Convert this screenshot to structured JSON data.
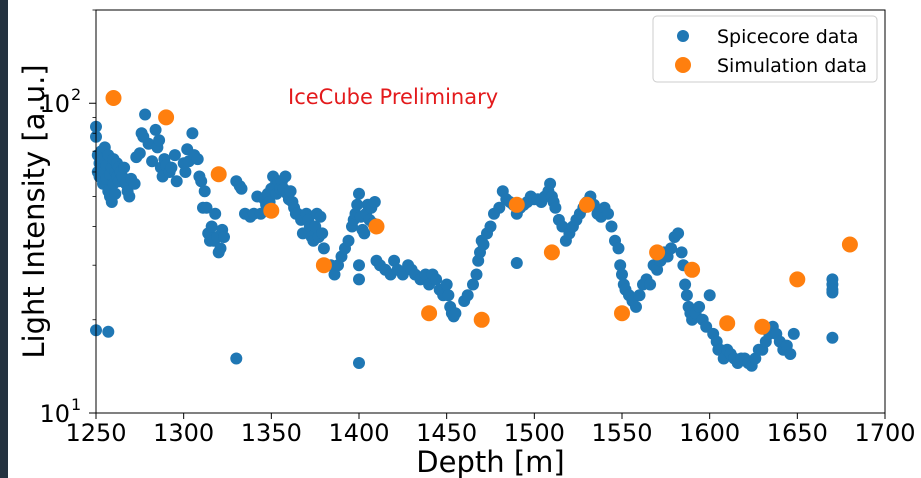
{
  "chart_data": {
    "type": "scatter",
    "title": "",
    "xlabel": "Depth [m]",
    "ylabel": "Light Intensity [a.u.]",
    "xlim": [
      1250,
      1700
    ],
    "ylim": [
      10,
      200
    ],
    "yscale": "log",
    "xticks": [
      "1250",
      "1300",
      "1350",
      "1400",
      "1450",
      "1500",
      "1550",
      "1600",
      "1650",
      "1700"
    ],
    "yticks": [
      {
        "value": 10,
        "base": "10",
        "exp": "1"
      },
      {
        "value": 100,
        "base": "10",
        "exp": "2"
      }
    ],
    "grid": false,
    "legend_position": "top-right",
    "annotation": {
      "text": "IceCube Preliminary",
      "color": "#e31a1c"
    },
    "series": [
      {
        "name": "Spicecore data",
        "color": "#1f77b4",
        "points": [
          [
            1250,
            84
          ],
          [
            1250,
            78
          ],
          [
            1251,
            68
          ],
          [
            1251,
            60
          ],
          [
            1252,
            64
          ],
          [
            1252,
            58
          ],
          [
            1253,
            70
          ],
          [
            1253,
            62
          ],
          [
            1254,
            55
          ],
          [
            1254,
            66
          ],
          [
            1255,
            72
          ],
          [
            1255,
            60
          ],
          [
            1256,
            57
          ],
          [
            1256,
            63
          ],
          [
            1257,
            68
          ],
          [
            1257,
            52
          ],
          [
            1258,
            59
          ],
          [
            1258,
            50
          ],
          [
            1259,
            62
          ],
          [
            1259,
            48
          ],
          [
            1260,
            66
          ],
          [
            1260,
            55
          ],
          [
            1261,
            60
          ],
          [
            1261,
            51
          ],
          [
            1262,
            64
          ],
          [
            1262,
            58
          ],
          [
            1263,
            56
          ],
          [
            1263,
            62
          ],
          [
            1264,
            60
          ],
          [
            1265,
            58
          ],
          [
            1266,
            62
          ],
          [
            1267,
            55
          ],
          [
            1268,
            52
          ],
          [
            1269,
            50
          ],
          [
            1270,
            57
          ],
          [
            1272,
            55
          ],
          [
            1273,
            67
          ],
          [
            1275,
            69
          ],
          [
            1276,
            80
          ],
          [
            1277,
            78
          ],
          [
            1278,
            92
          ],
          [
            1280,
            74
          ],
          [
            1282,
            65
          ],
          [
            1284,
            82
          ],
          [
            1285,
            72
          ],
          [
            1286,
            76
          ],
          [
            1287,
            62
          ],
          [
            1288,
            58
          ],
          [
            1289,
            66
          ],
          [
            1290,
            63
          ],
          [
            1292,
            60
          ],
          [
            1293,
            62
          ],
          [
            1295,
            68
          ],
          [
            1296,
            56
          ],
          [
            1300,
            64
          ],
          [
            1301,
            60
          ],
          [
            1302,
            71
          ],
          [
            1303,
            65
          ],
          [
            1305,
            80
          ],
          [
            1306,
            68
          ],
          [
            1308,
            66
          ],
          [
            1309,
            58
          ],
          [
            1310,
            56
          ],
          [
            1311,
            46
          ],
          [
            1312,
            52
          ],
          [
            1313,
            46
          ],
          [
            1314,
            38
          ],
          [
            1315,
            36
          ],
          [
            1316,
            40
          ],
          [
            1317,
            36
          ],
          [
            1318,
            44
          ],
          [
            1319,
            37
          ],
          [
            1320,
            33
          ],
          [
            1321,
            34
          ],
          [
            1322,
            39
          ],
          [
            1323,
            37
          ],
          [
            1330,
            15
          ],
          [
            1250,
            18.5
          ],
          [
            1257,
            18.3
          ],
          [
            1330,
            56
          ],
          [
            1332,
            54
          ],
          [
            1333,
            53
          ],
          [
            1335,
            44
          ],
          [
            1338,
            43
          ],
          [
            1340,
            44
          ],
          [
            1342,
            50
          ],
          [
            1344,
            44
          ],
          [
            1346,
            49
          ],
          [
            1347,
            47
          ],
          [
            1348,
            51
          ],
          [
            1349,
            48
          ],
          [
            1350,
            53
          ],
          [
            1351,
            58
          ],
          [
            1352,
            54
          ],
          [
            1353,
            51
          ],
          [
            1354,
            56
          ],
          [
            1355,
            53
          ],
          [
            1356,
            56
          ],
          [
            1357,
            53
          ],
          [
            1358,
            58
          ],
          [
            1359,
            51
          ],
          [
            1360,
            49
          ],
          [
            1361,
            52
          ],
          [
            1362,
            48
          ],
          [
            1363,
            46
          ],
          [
            1364,
            44
          ],
          [
            1365,
            44
          ],
          [
            1367,
            42
          ],
          [
            1368,
            38
          ],
          [
            1370,
            44
          ],
          [
            1371,
            42
          ],
          [
            1372,
            40
          ],
          [
            1373,
            37
          ],
          [
            1374,
            36
          ],
          [
            1375,
            40
          ],
          [
            1376,
            44
          ],
          [
            1377,
            37
          ],
          [
            1378,
            43
          ],
          [
            1379,
            38
          ],
          [
            1380,
            34
          ],
          [
            1384,
            30
          ],
          [
            1386,
            28
          ],
          [
            1388,
            30
          ],
          [
            1390,
            32
          ],
          [
            1392,
            34
          ],
          [
            1394,
            36
          ],
          [
            1396,
            40
          ],
          [
            1397,
            42
          ],
          [
            1398,
            44
          ],
          [
            1399,
            47
          ],
          [
            1400,
            51
          ],
          [
            1401,
            43
          ],
          [
            1402,
            39
          ],
          [
            1403,
            38
          ],
          [
            1404,
            44
          ],
          [
            1405,
            47
          ],
          [
            1406,
            42
          ],
          [
            1407,
            46
          ],
          [
            1408,
            41
          ],
          [
            1409,
            48
          ],
          [
            1400,
            30
          ],
          [
            1400,
            27
          ],
          [
            1400,
            14.5
          ],
          [
            1410,
            31
          ],
          [
            1412,
            30
          ],
          [
            1415,
            29
          ],
          [
            1418,
            28
          ],
          [
            1420,
            31
          ],
          [
            1422,
            29
          ],
          [
            1425,
            28
          ],
          [
            1428,
            30
          ],
          [
            1430,
            29
          ],
          [
            1432,
            28
          ],
          [
            1435,
            27
          ],
          [
            1438,
            28
          ],
          [
            1440,
            26
          ],
          [
            1442,
            28
          ],
          [
            1444,
            27
          ],
          [
            1446,
            25
          ],
          [
            1448,
            24
          ],
          [
            1450,
            26
          ],
          [
            1451,
            24
          ],
          [
            1452,
            22
          ],
          [
            1453,
            21
          ],
          [
            1454,
            20.5
          ],
          [
            1455,
            21
          ],
          [
            1460,
            23
          ],
          [
            1462,
            24
          ],
          [
            1465,
            26
          ],
          [
            1467,
            28
          ],
          [
            1468,
            31
          ],
          [
            1469,
            33
          ],
          [
            1470,
            36
          ],
          [
            1471,
            35
          ],
          [
            1473,
            38
          ],
          [
            1475,
            40
          ],
          [
            1477,
            44
          ],
          [
            1480,
            46
          ],
          [
            1482,
            52
          ],
          [
            1484,
            49
          ],
          [
            1486,
            48
          ],
          [
            1488,
            47
          ],
          [
            1490,
            44
          ],
          [
            1490,
            30.5
          ],
          [
            1492,
            46
          ],
          [
            1494,
            47
          ],
          [
            1496,
            48
          ],
          [
            1498,
            50
          ],
          [
            1500,
            49
          ],
          [
            1502,
            49
          ],
          [
            1504,
            48
          ],
          [
            1506,
            50
          ],
          [
            1508,
            52
          ],
          [
            1509,
            55
          ],
          [
            1510,
            50
          ],
          [
            1511,
            48
          ],
          [
            1512,
            46
          ],
          [
            1514,
            42
          ],
          [
            1516,
            40
          ],
          [
            1518,
            36
          ],
          [
            1520,
            38
          ],
          [
            1522,
            40
          ],
          [
            1524,
            42
          ],
          [
            1526,
            44
          ],
          [
            1528,
            46
          ],
          [
            1530,
            48
          ],
          [
            1532,
            50
          ],
          [
            1534,
            47
          ],
          [
            1536,
            44
          ],
          [
            1538,
            43
          ],
          [
            1540,
            46
          ],
          [
            1542,
            44
          ],
          [
            1544,
            40
          ],
          [
            1546,
            36
          ],
          [
            1548,
            34
          ],
          [
            1549,
            30
          ],
          [
            1550,
            28
          ],
          [
            1551,
            26
          ],
          [
            1552,
            25
          ],
          [
            1554,
            24
          ],
          [
            1556,
            23
          ],
          [
            1558,
            22
          ],
          [
            1560,
            24
          ],
          [
            1562,
            26
          ],
          [
            1564,
            27
          ],
          [
            1566,
            26
          ],
          [
            1568,
            30
          ],
          [
            1570,
            29
          ],
          [
            1572,
            31
          ],
          [
            1574,
            33
          ],
          [
            1576,
            32
          ],
          [
            1578,
            34
          ],
          [
            1580,
            37
          ],
          [
            1582,
            38
          ],
          [
            1584,
            33
          ],
          [
            1585,
            30
          ],
          [
            1586,
            26
          ],
          [
            1587,
            24
          ],
          [
            1588,
            22
          ],
          [
            1589,
            21
          ],
          [
            1590,
            20
          ],
          [
            1592,
            21
          ],
          [
            1594,
            22
          ],
          [
            1596,
            20
          ],
          [
            1598,
            19
          ],
          [
            1600,
            24
          ],
          [
            1602,
            18
          ],
          [
            1604,
            17
          ],
          [
            1605,
            16
          ],
          [
            1606,
            16
          ],
          [
            1608,
            15
          ],
          [
            1610,
            16
          ],
          [
            1612,
            15.5
          ],
          [
            1614,
            15
          ],
          [
            1616,
            14.5
          ],
          [
            1618,
            15
          ],
          [
            1620,
            15
          ],
          [
            1622,
            14.5
          ],
          [
            1624,
            14.2
          ],
          [
            1626,
            15
          ],
          [
            1628,
            16
          ],
          [
            1630,
            16
          ],
          [
            1632,
            17
          ],
          [
            1634,
            18
          ],
          [
            1636,
            19
          ],
          [
            1638,
            18
          ],
          [
            1640,
            17
          ],
          [
            1642,
            16
          ],
          [
            1644,
            16.5
          ],
          [
            1646,
            15.5
          ],
          [
            1648,
            18
          ],
          [
            1670,
            27
          ],
          [
            1670,
            26
          ],
          [
            1670,
            25
          ],
          [
            1670,
            24.5
          ],
          [
            1670,
            17.5
          ]
        ]
      },
      {
        "name": "Simulation data",
        "color": "#ff7f0e",
        "points": [
          [
            1260,
            104
          ],
          [
            1290,
            90
          ],
          [
            1320,
            59
          ],
          [
            1350,
            45
          ],
          [
            1380,
            30
          ],
          [
            1410,
            40
          ],
          [
            1440,
            21
          ],
          [
            1470,
            20
          ],
          [
            1490,
            47
          ],
          [
            1510,
            33
          ],
          [
            1530,
            47
          ],
          [
            1550,
            21
          ],
          [
            1570,
            33
          ],
          [
            1590,
            29
          ],
          [
            1610,
            19.5
          ],
          [
            1630,
            19
          ],
          [
            1650,
            27
          ],
          [
            1680,
            35
          ]
        ]
      }
    ]
  }
}
